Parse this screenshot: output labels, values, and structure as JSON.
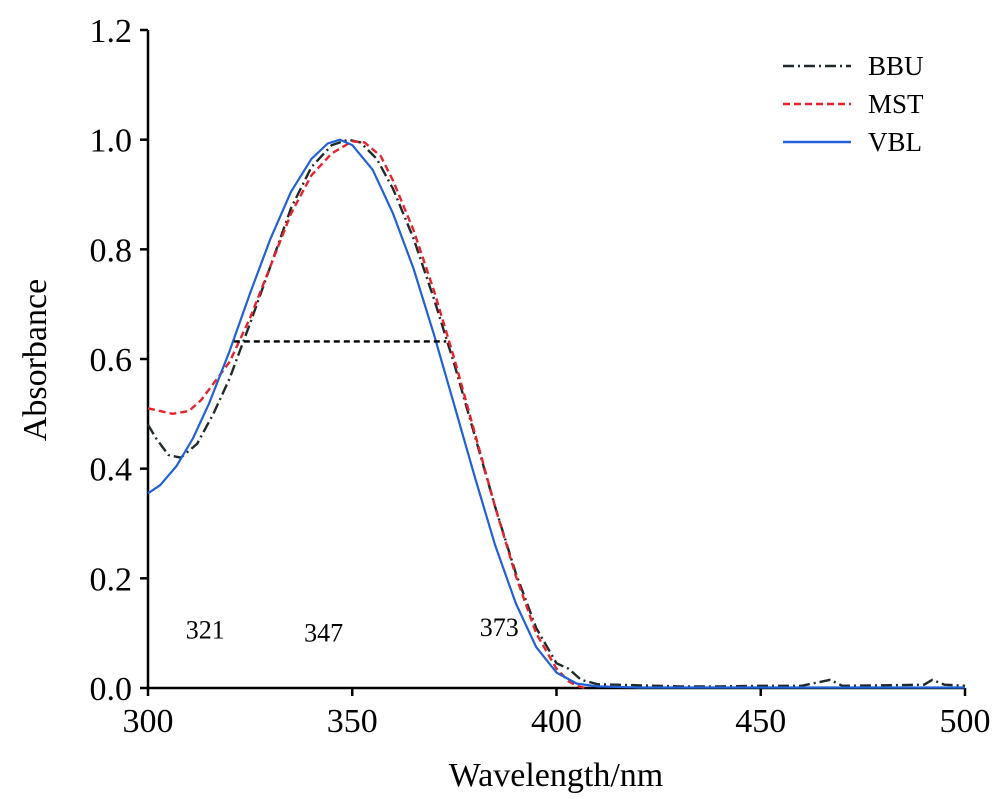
{
  "chart_data": {
    "type": "line",
    "xlabel": "Wavelength/nm",
    "ylabel": "Absorbance",
    "xlim": [
      300,
      500
    ],
    "ylim": [
      0,
      1.2
    ],
    "xticks": [
      300,
      350,
      400,
      450,
      500
    ],
    "yticks": [
      0.0,
      0.2,
      0.4,
      0.6,
      0.8,
      1.0,
      1.2
    ],
    "ytick_labels": [
      "0.0",
      "0.2",
      "0.4",
      "0.6",
      "0.8",
      "1.0",
      "1.2"
    ],
    "grid": false,
    "legend_position": "top-right",
    "series": [
      {
        "name": "BBU",
        "color": "#1f2a2a",
        "dash": "dashdot",
        "x": [
          300,
          302,
          305,
          308,
          312,
          316,
          320,
          325,
          330,
          335,
          340,
          345,
          349,
          352,
          356,
          360,
          365,
          370,
          375,
          380,
          385,
          390,
          395,
          400,
          403,
          406,
          410,
          420,
          430,
          440,
          450,
          460,
          467,
          470,
          480,
          490,
          492,
          495,
          500
        ],
        "y": [
          0.48,
          0.455,
          0.425,
          0.42,
          0.445,
          0.5,
          0.565,
          0.665,
          0.77,
          0.875,
          0.95,
          0.99,
          1.0,
          0.995,
          0.965,
          0.91,
          0.82,
          0.71,
          0.59,
          0.46,
          0.33,
          0.21,
          0.11,
          0.045,
          0.035,
          0.015,
          0.007,
          0.005,
          0.003,
          0.003,
          0.004,
          0.004,
          0.015,
          0.004,
          0.005,
          0.006,
          0.015,
          0.006,
          0.004
        ]
      },
      {
        "name": "MST",
        "color": "#e8222a",
        "dash": "dashed",
        "x": [
          300,
          303,
          306,
          310,
          313,
          316,
          320,
          325,
          330,
          335,
          340,
          345,
          350,
          353,
          357,
          360,
          365,
          370,
          375,
          380,
          385,
          390,
          395,
          400,
          403,
          405,
          407
        ],
        "y": [
          0.51,
          0.505,
          0.5,
          0.505,
          0.525,
          0.555,
          0.595,
          0.675,
          0.77,
          0.865,
          0.935,
          0.975,
          0.997,
          0.995,
          0.97,
          0.925,
          0.835,
          0.725,
          0.6,
          0.465,
          0.33,
          0.205,
          0.1,
          0.035,
          0.012,
          0.004,
          0.0
        ]
      },
      {
        "name": "VBL",
        "color": "#2060d8",
        "dash": "solid",
        "x": [
          300,
          303,
          307,
          311,
          315,
          320,
          325,
          330,
          335,
          340,
          344,
          347,
          350,
          355,
          360,
          365,
          370,
          375,
          380,
          385,
          390,
          395,
          400,
          405,
          410,
          420,
          430,
          450,
          470,
          490,
          500
        ],
        "y": [
          0.355,
          0.37,
          0.405,
          0.455,
          0.52,
          0.615,
          0.72,
          0.82,
          0.905,
          0.965,
          0.993,
          1.0,
          0.99,
          0.945,
          0.865,
          0.765,
          0.645,
          0.515,
          0.385,
          0.26,
          0.155,
          0.075,
          0.028,
          0.008,
          0.003,
          0.001,
          0.001,
          0.001,
          0.001,
          0.001,
          0.001
        ]
      }
    ],
    "fwhm_line": {
      "x_start": 321,
      "x_end": 373,
      "y": 0.632,
      "color": "#000000",
      "dash": "dashed"
    },
    "annotations": [
      {
        "text": "321",
        "x": 314,
        "y": 0.09
      },
      {
        "text": "347",
        "x": 343,
        "y": 0.085
      },
      {
        "text": "373",
        "x": 386,
        "y": 0.095
      }
    ]
  }
}
